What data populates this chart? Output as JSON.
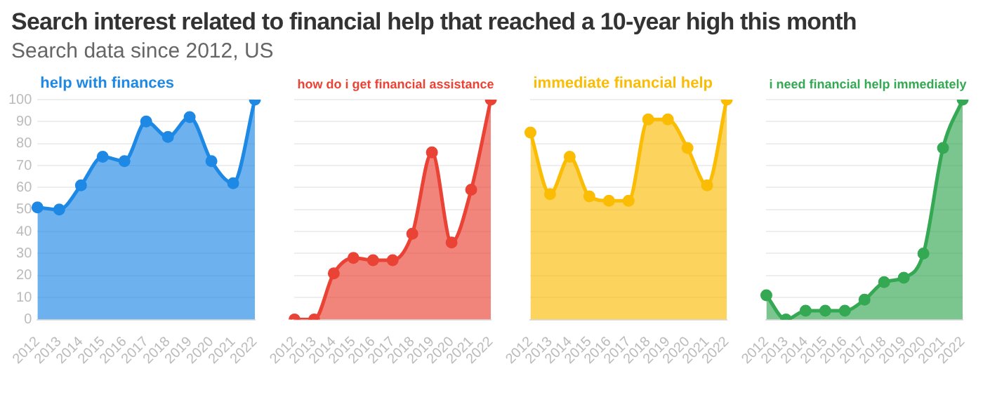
{
  "chart_data": [
    {
      "type": "area",
      "title": "Search interest related to financial help that reached a 10-year high this month",
      "subtitle": "Search data since 2012, US",
      "categories": [
        "2012",
        "2013",
        "2014",
        "2015",
        "2016",
        "2017",
        "2018",
        "2019",
        "2020",
        "2021",
        "2022"
      ],
      "series": [
        {
          "name": "help with finances",
          "color": "#1e88e5",
          "values": [
            51,
            50,
            61,
            74,
            72,
            90,
            83,
            92,
            72,
            62,
            100
          ]
        }
      ],
      "ylim": [
        0,
        100
      ],
      "yticks": [
        0,
        10,
        20,
        30,
        40,
        50,
        60,
        70,
        80,
        90,
        100
      ],
      "grid": "y",
      "legend": false,
      "marker": "circle"
    },
    {
      "type": "area",
      "categories": [
        "2012",
        "2013",
        "2014",
        "2015",
        "2016",
        "2017",
        "2018",
        "2019",
        "2020",
        "2021",
        "2022"
      ],
      "series": [
        {
          "name": "how do i get financial assistance",
          "color": "#ea4335",
          "values": [
            0,
            0,
            21,
            28,
            27,
            27,
            39,
            76,
            35,
            59,
            100
          ]
        }
      ],
      "ylim": [
        0,
        100
      ],
      "yticks": [
        0,
        10,
        20,
        30,
        40,
        50,
        60,
        70,
        80,
        90,
        100
      ],
      "grid": "y",
      "legend": false,
      "marker": "circle",
      "tick_labels": "x"
    },
    {
      "type": "area",
      "categories": [
        "2012",
        "2013",
        "2014",
        "2015",
        "2016",
        "2017",
        "2018",
        "2019",
        "2020",
        "2021",
        "2022"
      ],
      "series": [
        {
          "name": "immediate financial help",
          "color": "#fbbc04",
          "values": [
            85,
            57,
            74,
            56,
            54,
            54,
            91,
            91,
            78,
            61,
            100
          ]
        }
      ],
      "ylim": [
        0,
        100
      ],
      "yticks": [
        0,
        10,
        20,
        30,
        40,
        50,
        60,
        70,
        80,
        90,
        100
      ],
      "grid": "y",
      "legend": false,
      "marker": "circle",
      "tick_labels": "x"
    },
    {
      "type": "area",
      "categories": [
        "2012",
        "2013",
        "2014",
        "2015",
        "2016",
        "2017",
        "2018",
        "2019",
        "2020",
        "2021",
        "2022"
      ],
      "series": [
        {
          "name": "i need financial help immediately",
          "color": "#34a853",
          "values": [
            11,
            0,
            4,
            4,
            4,
            9,
            17,
            19,
            30,
            78,
            100
          ]
        }
      ],
      "ylim": [
        0,
        100
      ],
      "yticks": [
        0,
        10,
        20,
        30,
        40,
        50,
        60,
        70,
        80,
        90,
        100
      ],
      "grid": "y",
      "legend": false,
      "marker": "circle",
      "tick_labels": "x"
    }
  ]
}
